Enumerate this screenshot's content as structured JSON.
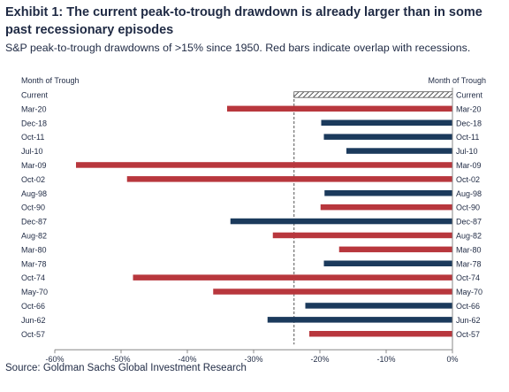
{
  "title": "Exhibit 1: The current peak-to-trough drawdown is already larger than in some past recessionary episodes",
  "subtitle": "S&P peak-to-trough drawdowns of >15% since 1950. Red bars indicate overlap with recessions.",
  "source": "Source: Goldman Sachs Global Investment Research",
  "colors": {
    "recession": "#b8373d",
    "non_recession": "#1b3a5c",
    "current_hatch": "#555555"
  },
  "chart_data": {
    "type": "bar",
    "orientation": "horizontal",
    "ylabel_left": "Month of Trough",
    "ylabel_right": "Month of Trough",
    "xlim": [
      -60,
      0
    ],
    "xticks": [
      "-60%",
      "-50%",
      "-40%",
      "-30%",
      "-20%",
      "-10%",
      "0%"
    ],
    "categories": [
      "Current",
      "Mar-20",
      "Dec-18",
      "Oct-11",
      "Jul-10",
      "Mar-09",
      "Oct-02",
      "Aug-98",
      "Oct-90",
      "Dec-87",
      "Aug-82",
      "Mar-80",
      "Mar-78",
      "Oct-74",
      "May-70",
      "Oct-66",
      "Jun-62",
      "Oct-57"
    ],
    "values": [
      -23.9,
      -34,
      -19.8,
      -19.4,
      -16,
      -56.8,
      -49.1,
      -19.3,
      -19.9,
      -33.5,
      -27.1,
      -17.1,
      -19.4,
      -48.2,
      -36.1,
      -22.2,
      -27.9,
      -21.6
    ],
    "recession": [
      false,
      true,
      false,
      false,
      false,
      true,
      true,
      false,
      true,
      false,
      true,
      true,
      false,
      true,
      true,
      false,
      false,
      true
    ],
    "current_marker": true,
    "grid": false
  }
}
